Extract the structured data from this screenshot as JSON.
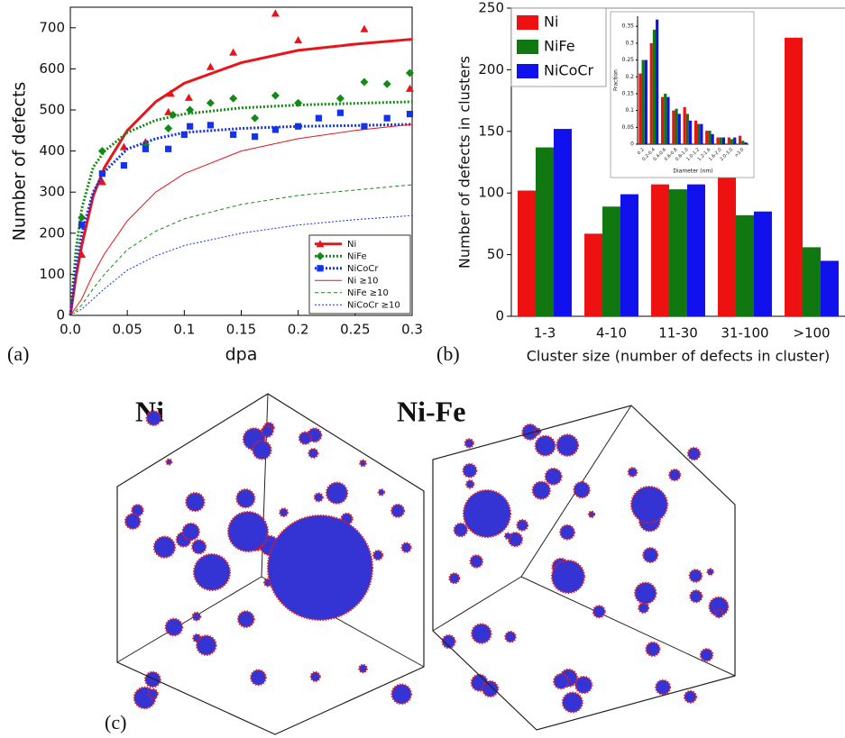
{
  "chart_data": [
    {
      "type": "line",
      "xlabel": "dpa",
      "ylabel": "Number of defects",
      "xlim": [
        0,
        0.3
      ],
      "xticks": [
        {
          "value": 0,
          "label": "0.0"
        },
        0.05,
        0.1,
        0.15,
        0.2,
        0.25,
        0.3
      ],
      "ylim": [
        0,
        750
      ],
      "yticks": [
        0,
        100,
        200,
        300,
        400,
        500,
        600,
        700
      ],
      "legend": "lower right",
      "fit_x": [
        0,
        0.005,
        0.01,
        0.02,
        0.03,
        0.05,
        0.075,
        0.1,
        0.15,
        0.2,
        0.25,
        0.3
      ],
      "series": [
        {
          "name": "Ni",
          "color": "#e8141a",
          "marker": "triangle",
          "dash": "solid",
          "width": 3,
          "x": [
            0.01,
            0.028,
            0.047,
            0.066,
            0.086,
            0.088,
            0.104,
            0.123,
            0.143,
            0.18,
            0.2,
            0.258,
            0.298
          ],
          "values": [
            148,
            325,
            410,
            422,
            495,
            540,
            530,
            605,
            640,
            735,
            670,
            697,
            552
          ],
          "fit": [
            0,
            95,
            170,
            290,
            360,
            450,
            520,
            565,
            615,
            645,
            660,
            672
          ]
        },
        {
          "name": "NiFe",
          "color": "#138a13",
          "marker": "diamond",
          "dash": "dotted",
          "width": 3,
          "x": [
            0.01,
            0.028,
            0.066,
            0.086,
            0.09,
            0.105,
            0.123,
            0.143,
            0.162,
            0.18,
            0.2,
            0.237,
            0.258,
            0.278,
            0.298
          ],
          "values": [
            238,
            400,
            415,
            455,
            488,
            500,
            517,
            528,
            480,
            535,
            517,
            528,
            568,
            563,
            590
          ],
          "fit": [
            0,
            160,
            260,
            360,
            400,
            445,
            475,
            490,
            505,
            512,
            516,
            520
          ]
        },
        {
          "name": "NiCoCr",
          "color": "#1432e8",
          "marker": "square",
          "dash": "dotted",
          "width": 3,
          "x": [
            0.01,
            0.028,
            0.047,
            0.066,
            0.086,
            0.1,
            0.105,
            0.123,
            0.143,
            0.162,
            0.18,
            0.2,
            0.218,
            0.237,
            0.258,
            0.278,
            0.298
          ],
          "values": [
            220,
            345,
            365,
            405,
            405,
            440,
            460,
            463,
            440,
            435,
            452,
            460,
            480,
            493,
            460,
            480,
            490
          ],
          "fit": [
            0,
            120,
            200,
            300,
            350,
            405,
            430,
            445,
            455,
            460,
            462,
            465
          ]
        },
        {
          "name": "Ni ≥10",
          "color": "#e8141a",
          "dash": "solid",
          "width": 1,
          "fit": [
            0,
            20,
            40,
            100,
            150,
            230,
            300,
            345,
            400,
            430,
            450,
            465
          ]
        },
        {
          "name": "NiFe ≥10",
          "color": "#138a13",
          "dash": "dashed",
          "width": 1,
          "fit": [
            0,
            12,
            25,
            65,
            100,
            160,
            205,
            235,
            270,
            292,
            305,
            318
          ]
        },
        {
          "name": "NiCoCr ≥10",
          "color": "#1432e8",
          "dash": "dotted",
          "width": 1,
          "fit": [
            0,
            8,
            15,
            40,
            65,
            110,
            145,
            170,
            200,
            220,
            233,
            243
          ]
        }
      ]
    },
    {
      "type": "bar",
      "xlabel": "Cluster size (number of defects in cluster)",
      "ylabel": "Number of defects in clusters",
      "categories": [
        "1-3",
        "4-10",
        "11-30",
        "31-100",
        ">100"
      ],
      "ylim": [
        0,
        250
      ],
      "yticks": [
        0,
        50,
        100,
        150,
        200,
        250
      ],
      "legend": "upper left",
      "series": [
        {
          "name": "Ni",
          "color": "#ee1111",
          "values": [
            102,
            67,
            107,
            117,
            226
          ]
        },
        {
          "name": "NiFe",
          "color": "#117711",
          "values": [
            137,
            89,
            103,
            82,
            56
          ]
        },
        {
          "name": "NiCoCr",
          "color": "#1111ee",
          "values": [
            152,
            99,
            107,
            85,
            45
          ]
        }
      ]
    },
    {
      "type": "bar",
      "xlabel": "Diameter (nm)",
      "ylabel": "Fraction",
      "categories": [
        "0.2",
        "0.2-0.4",
        "0.4-0.6",
        "0.6-0.8",
        "0.8-1.0",
        "1.0-1.2",
        "1.2-1.6",
        "1.6-2.0",
        "2.0-3.0",
        ">3.0"
      ],
      "ylim": [
        0,
        0.38
      ],
      "yticks": [
        0,
        0.05,
        0.1,
        0.15,
        0.2,
        0.25,
        0.3,
        0.35
      ],
      "series": [
        {
          "color": "#ee1111",
          "values": [
            0.21,
            0.3,
            0.14,
            0.1,
            0.11,
            0.07,
            0.04,
            0.02,
            0.02,
            0.025
          ]
        },
        {
          "color": "#117711",
          "values": [
            0.25,
            0.34,
            0.15,
            0.105,
            0.09,
            0.06,
            0.04,
            0.02,
            0.015,
            0.01
          ]
        },
        {
          "color": "#1111ee",
          "values": [
            0.25,
            0.37,
            0.14,
            0.09,
            0.07,
            0.06,
            0.03,
            0.02,
            0.02,
            0.005
          ]
        }
      ]
    }
  ],
  "panel_labels": [
    "(a)",
    "(b)",
    "(c)"
  ],
  "images": [
    {
      "label": "Ni",
      "color": "#b01818"
    },
    {
      "label": "Ni-Fe",
      "color": "#1a8a1a"
    }
  ]
}
